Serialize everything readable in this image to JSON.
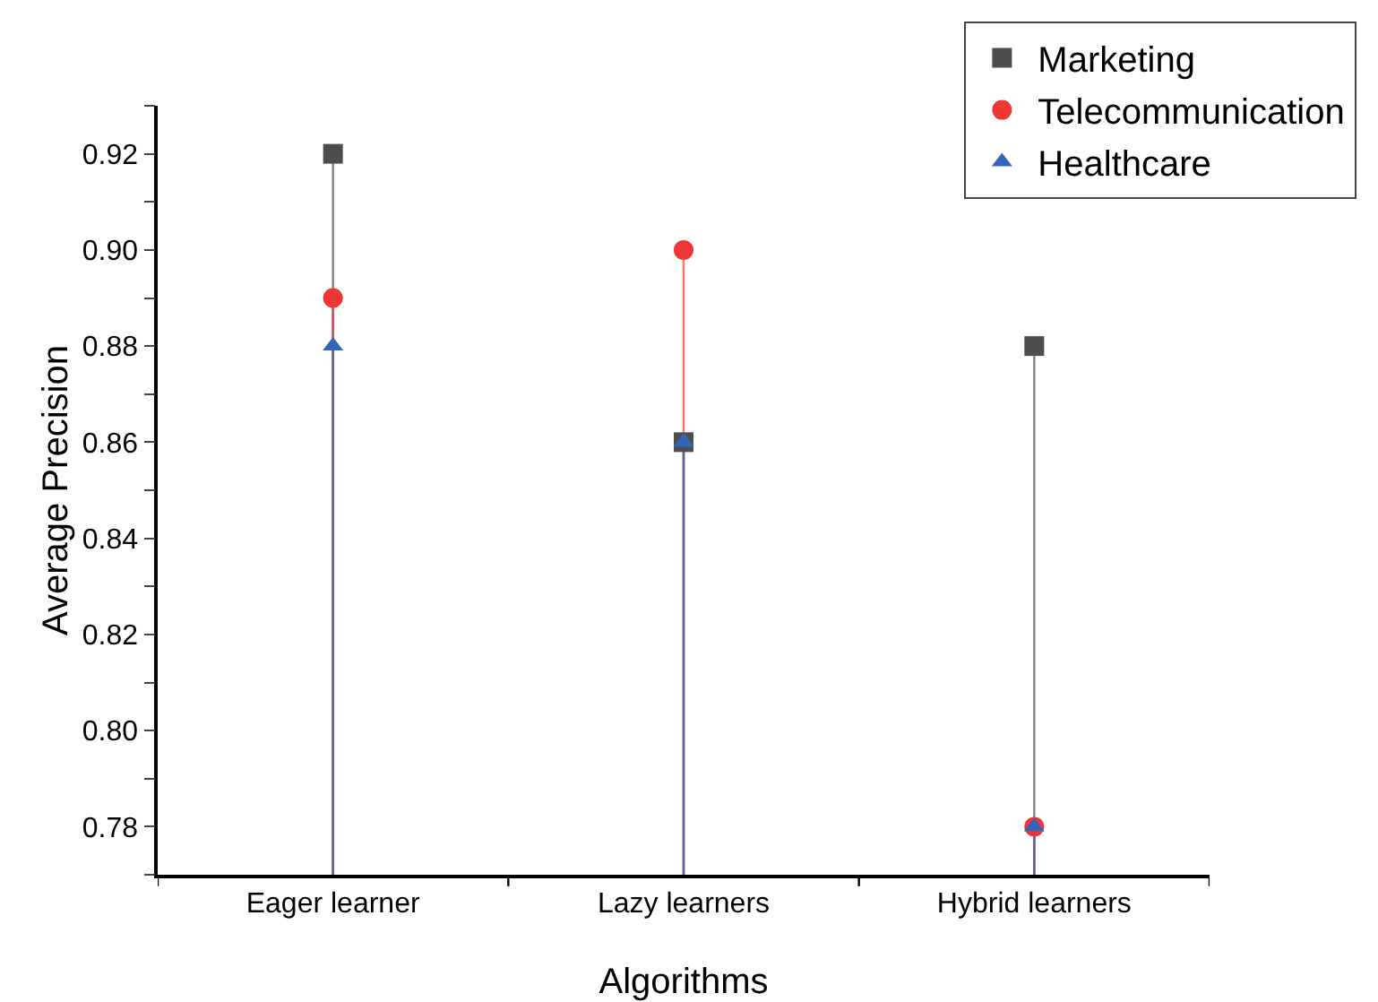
{
  "chart_data": {
    "type": "lollipop",
    "xlabel": "Algorithms",
    "ylabel": "Average Precision",
    "categories": [
      "Eager learner",
      "Lazy learners",
      "Hybrid learners"
    ],
    "series": [
      {
        "name": "Marketing",
        "color": "#4d4d4d",
        "marker": "square",
        "values": [
          0.92,
          0.86,
          0.88
        ]
      },
      {
        "name": "Telecommunication",
        "color": "#ee3636",
        "marker": "circle",
        "values": [
          0.89,
          0.9,
          0.78
        ]
      },
      {
        "name": "Healthcare",
        "color": "#3366bb",
        "marker": "triangle",
        "values": [
          0.88,
          0.86,
          0.78
        ]
      }
    ],
    "ylim": [
      0.77,
      0.93
    ],
    "yticks": [
      0.78,
      {
        "value": 0.8,
        "label": "0.80"
      },
      0.82,
      0.84,
      0.86,
      0.88,
      {
        "value": 0.9,
        "label": "0.90"
      },
      0.92,
      {
        "value": 0.77,
        "label": null
      },
      {
        "value": 0.79,
        "label": null
      },
      {
        "value": 0.81,
        "label": null
      },
      {
        "value": 0.83,
        "label": null
      },
      {
        "value": 0.85,
        "label": null
      },
      {
        "value": 0.87,
        "label": null
      },
      {
        "value": 0.89,
        "label": null
      },
      {
        "value": 0.91,
        "label": null
      },
      {
        "value": 0.93,
        "label": null
      }
    ],
    "legend": "top right"
  }
}
